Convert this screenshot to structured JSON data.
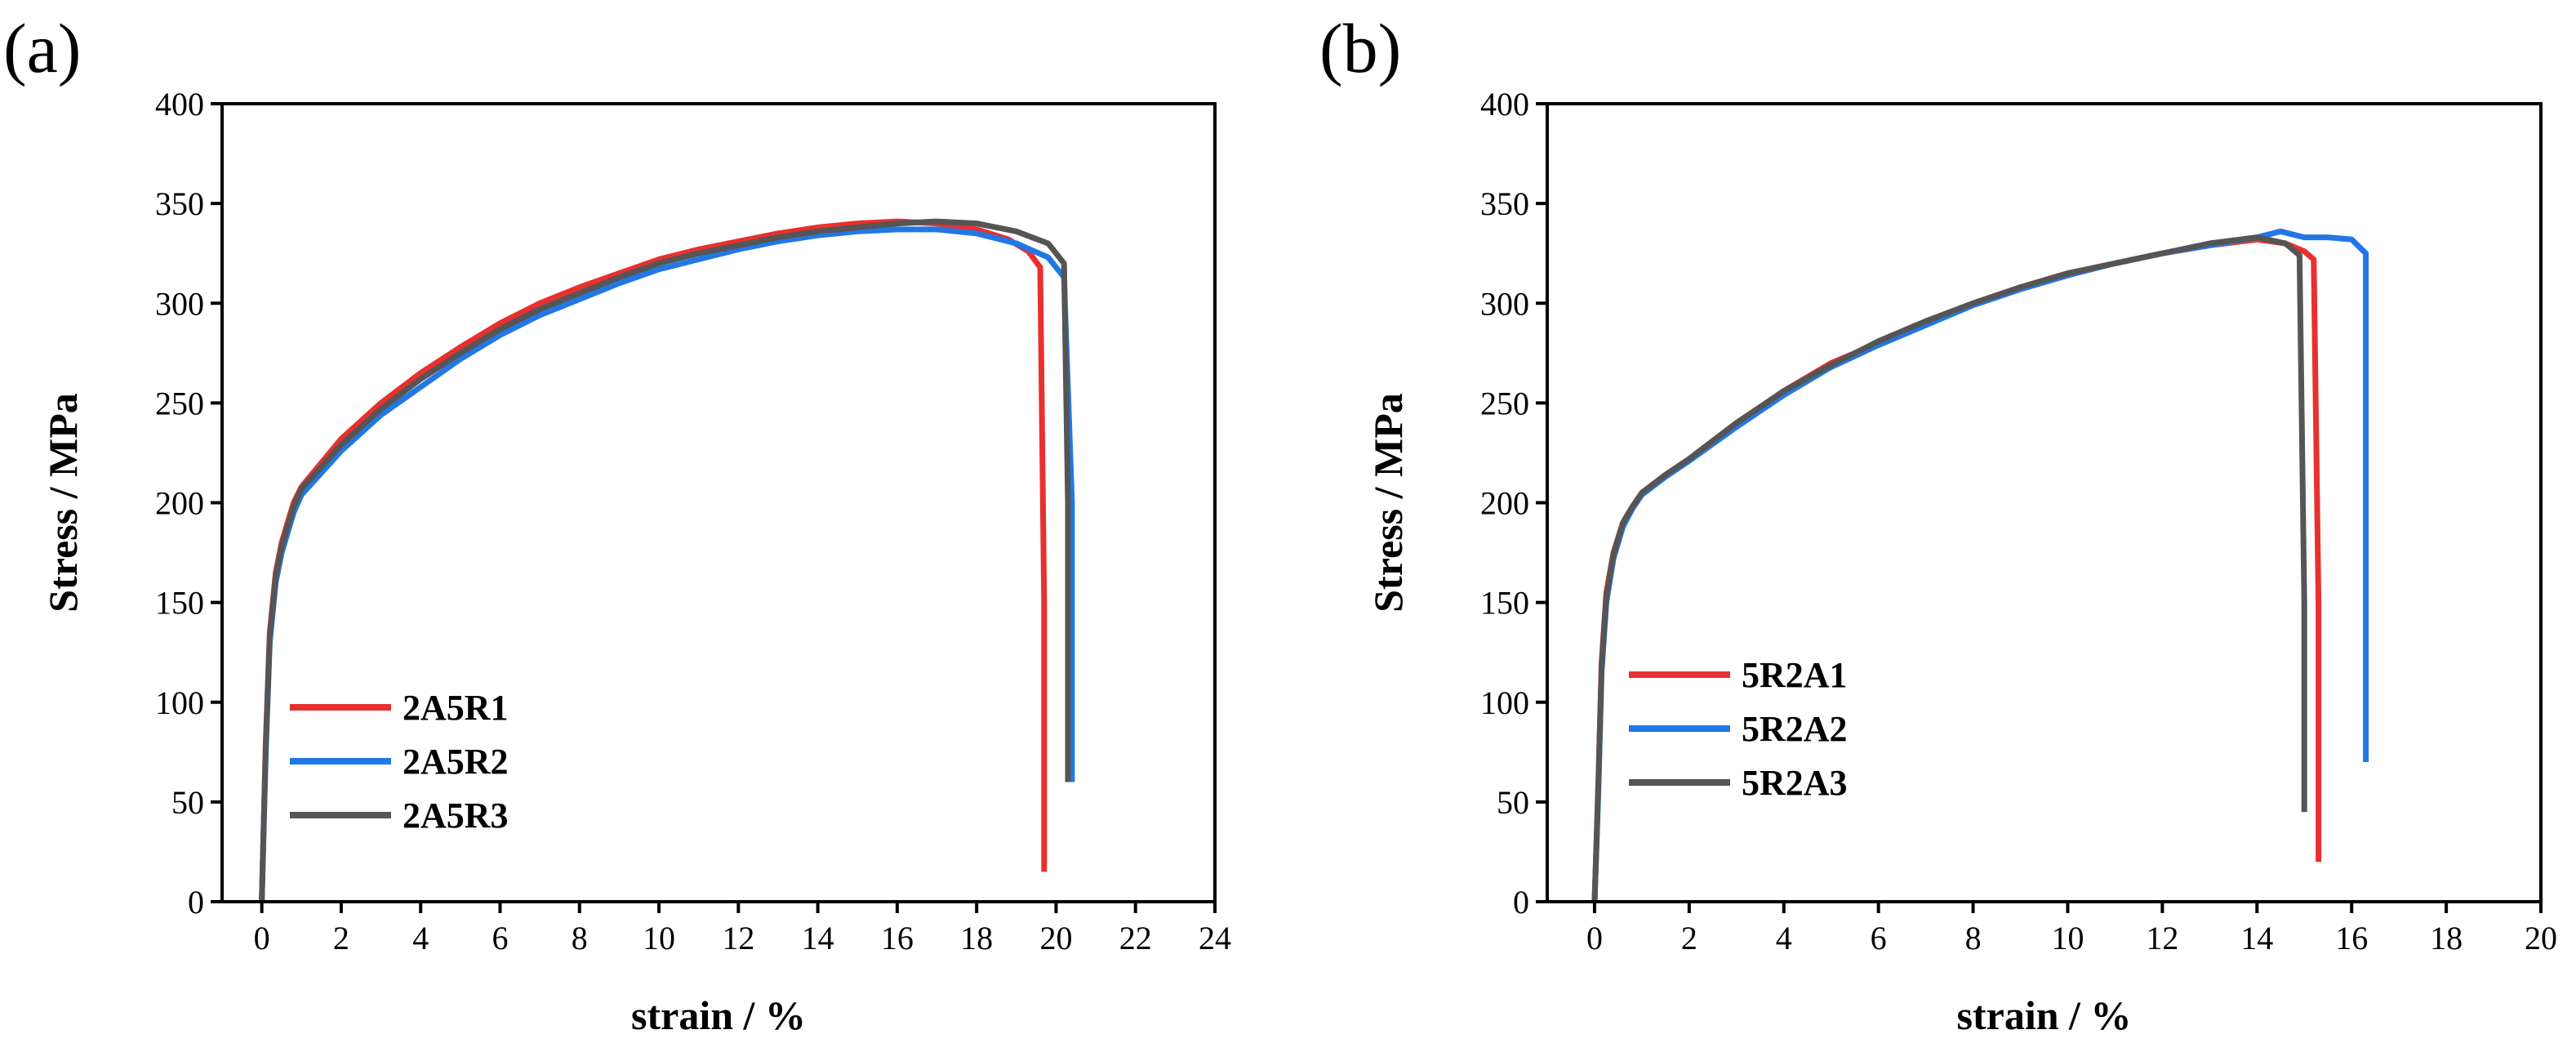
{
  "figure": {
    "panels": [
      "(a)",
      "(b)"
    ]
  },
  "colors": {
    "series1": "#e8302f",
    "series2": "#2277e6",
    "series3": "#555555",
    "axis": "#000000"
  },
  "chart_data": [
    {
      "type": "line",
      "panel_label": "(a)",
      "title": "",
      "xlabel": "strain / %",
      "ylabel": "Stress / MPa",
      "xlim": [
        -1,
        24
      ],
      "ylim": [
        0,
        400
      ],
      "xticks": [
        0,
        2,
        4,
        6,
        8,
        10,
        12,
        14,
        16,
        18,
        20,
        22,
        24
      ],
      "yticks": [
        0,
        50,
        100,
        150,
        200,
        250,
        300,
        350,
        400
      ],
      "legend_position": "lower-left",
      "series": [
        {
          "name": "2A5R1",
          "color": "#e8302f",
          "x": [
            0,
            0.1,
            0.2,
            0.35,
            0.5,
            0.8,
            1.0,
            1.5,
            2,
            3,
            4,
            5,
            6,
            7,
            8,
            9,
            10,
            11,
            12,
            13,
            14,
            15,
            16,
            17,
            18,
            18.8,
            19.3,
            19.6,
            19.7,
            19.7
          ],
          "y": [
            0,
            80,
            135,
            165,
            180,
            200,
            208,
            220,
            232,
            250,
            265,
            278,
            290,
            300,
            308,
            315,
            322,
            327,
            331,
            335,
            338,
            340,
            341,
            340,
            337,
            332,
            326,
            318,
            150,
            15
          ]
        },
        {
          "name": "2A5R2",
          "color": "#2277e6",
          "x": [
            0,
            0.1,
            0.2,
            0.35,
            0.5,
            0.8,
            1.0,
            1.5,
            2,
            3,
            4,
            5,
            6,
            7,
            8,
            9,
            10,
            11,
            12,
            13,
            14,
            15,
            16,
            17,
            18,
            19,
            19.8,
            20.2,
            20.4,
            20.4
          ],
          "y": [
            0,
            75,
            130,
            160,
            175,
            195,
            204,
            215,
            226,
            244,
            258,
            272,
            284,
            294,
            302,
            310,
            317,
            322,
            327,
            331,
            334,
            336,
            337,
            337,
            335,
            330,
            323,
            313,
            200,
            60
          ]
        },
        {
          "name": "2A5R3",
          "color": "#555555",
          "x": [
            0,
            0.1,
            0.2,
            0.35,
            0.5,
            0.8,
            1.0,
            1.5,
            2,
            3,
            4,
            5,
            6,
            7,
            8,
            9,
            10,
            11,
            12,
            13,
            14,
            15,
            16,
            17,
            18,
            19,
            19.8,
            20.2,
            20.3,
            20.3
          ],
          "y": [
            0,
            78,
            133,
            163,
            178,
            198,
            207,
            218,
            229,
            247,
            262,
            275,
            287,
            297,
            305,
            313,
            320,
            325,
            329,
            333,
            336,
            338,
            340,
            341,
            340,
            336,
            330,
            320,
            200,
            60
          ]
        }
      ]
    },
    {
      "type": "line",
      "panel_label": "(b)",
      "title": "",
      "xlabel": "strain / %",
      "ylabel": "Stress / MPa",
      "xlim": [
        -1,
        20
      ],
      "ylim": [
        0,
        400
      ],
      "xticks": [
        0,
        2,
        4,
        6,
        8,
        10,
        12,
        14,
        16,
        18,
        20
      ],
      "yticks": [
        0,
        50,
        100,
        150,
        200,
        250,
        300,
        350,
        400
      ],
      "legend_position": "lower-left",
      "series": [
        {
          "name": "5R2A1",
          "color": "#e8302f",
          "x": [
            0,
            0.08,
            0.15,
            0.25,
            0.4,
            0.6,
            0.8,
            1.0,
            1.5,
            2,
            3,
            4,
            5,
            6,
            7,
            8,
            9,
            10,
            11,
            12,
            13,
            14,
            14.6,
            15.0,
            15.2,
            15.3,
            15.3
          ],
          "y": [
            0,
            60,
            120,
            155,
            175,
            190,
            198,
            205,
            214,
            222,
            240,
            256,
            270,
            280,
            290,
            300,
            308,
            315,
            320,
            325,
            329,
            332,
            330,
            326,
            322,
            150,
            20
          ]
        },
        {
          "name": "5R2A2",
          "color": "#2277e6",
          "x": [
            0,
            0.08,
            0.15,
            0.25,
            0.4,
            0.6,
            0.8,
            1.0,
            1.5,
            2,
            3,
            4,
            5,
            6,
            7,
            8,
            9,
            10,
            11,
            12,
            13,
            14,
            14.5,
            15,
            15.5,
            16,
            16.3,
            16.3
          ],
          "y": [
            0,
            55,
            115,
            150,
            172,
            188,
            197,
            204,
            213,
            221,
            238,
            254,
            268,
            279,
            289,
            299,
            307,
            314,
            320,
            325,
            329,
            333,
            336,
            333,
            333,
            332,
            325,
            70
          ]
        },
        {
          "name": "5R2A3",
          "color": "#555555",
          "x": [
            0,
            0.08,
            0.15,
            0.25,
            0.4,
            0.6,
            0.8,
            1.0,
            1.5,
            2,
            3,
            4,
            5,
            6,
            7,
            8,
            9,
            10,
            11,
            12,
            13,
            14,
            14.6,
            14.9,
            15.0,
            15.0
          ],
          "y": [
            0,
            58,
            118,
            153,
            174,
            190,
            198,
            205,
            214,
            222,
            240,
            256,
            269,
            281,
            291,
            300,
            308,
            315,
            320,
            325,
            330,
            333,
            330,
            324,
            150,
            45
          ]
        }
      ]
    }
  ]
}
